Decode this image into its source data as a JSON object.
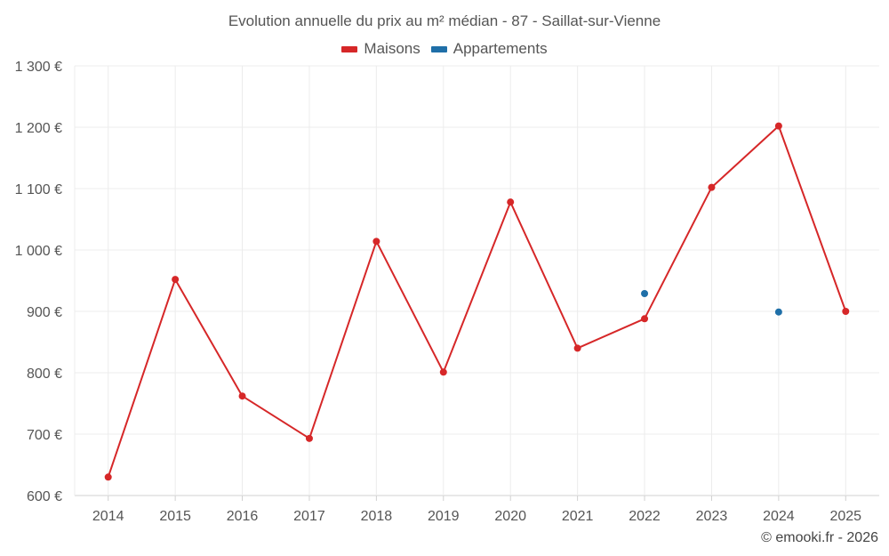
{
  "chart_data": {
    "type": "line",
    "title": "Evolution annuelle du prix au m² médian - 87 - Saillat-sur-Vienne",
    "categories": [
      "2014",
      "2015",
      "2016",
      "2017",
      "2018",
      "2019",
      "2020",
      "2021",
      "2022",
      "2023",
      "2024",
      "2025"
    ],
    "y_ticks": [
      "600 €",
      "700 €",
      "800 €",
      "900 €",
      "1 000 €",
      "1 100 €",
      "1 200 €",
      "1 300 €"
    ],
    "ylim": [
      600,
      1300
    ],
    "y_step": 100,
    "grid": true,
    "legend_position": "top-center",
    "series": [
      {
        "name": "Maisons",
        "color": "#d62728",
        "mode": "lines+markers",
        "values": [
          630,
          952,
          762,
          693,
          1014,
          801,
          1078,
          840,
          888,
          1102,
          1202,
          900
        ]
      },
      {
        "name": "Appartements",
        "color": "#1f6fa8",
        "mode": "markers",
        "values": [
          null,
          null,
          null,
          null,
          null,
          null,
          null,
          null,
          929,
          null,
          899,
          null
        ]
      }
    ]
  },
  "credit": "© emooki.fr - 2026"
}
